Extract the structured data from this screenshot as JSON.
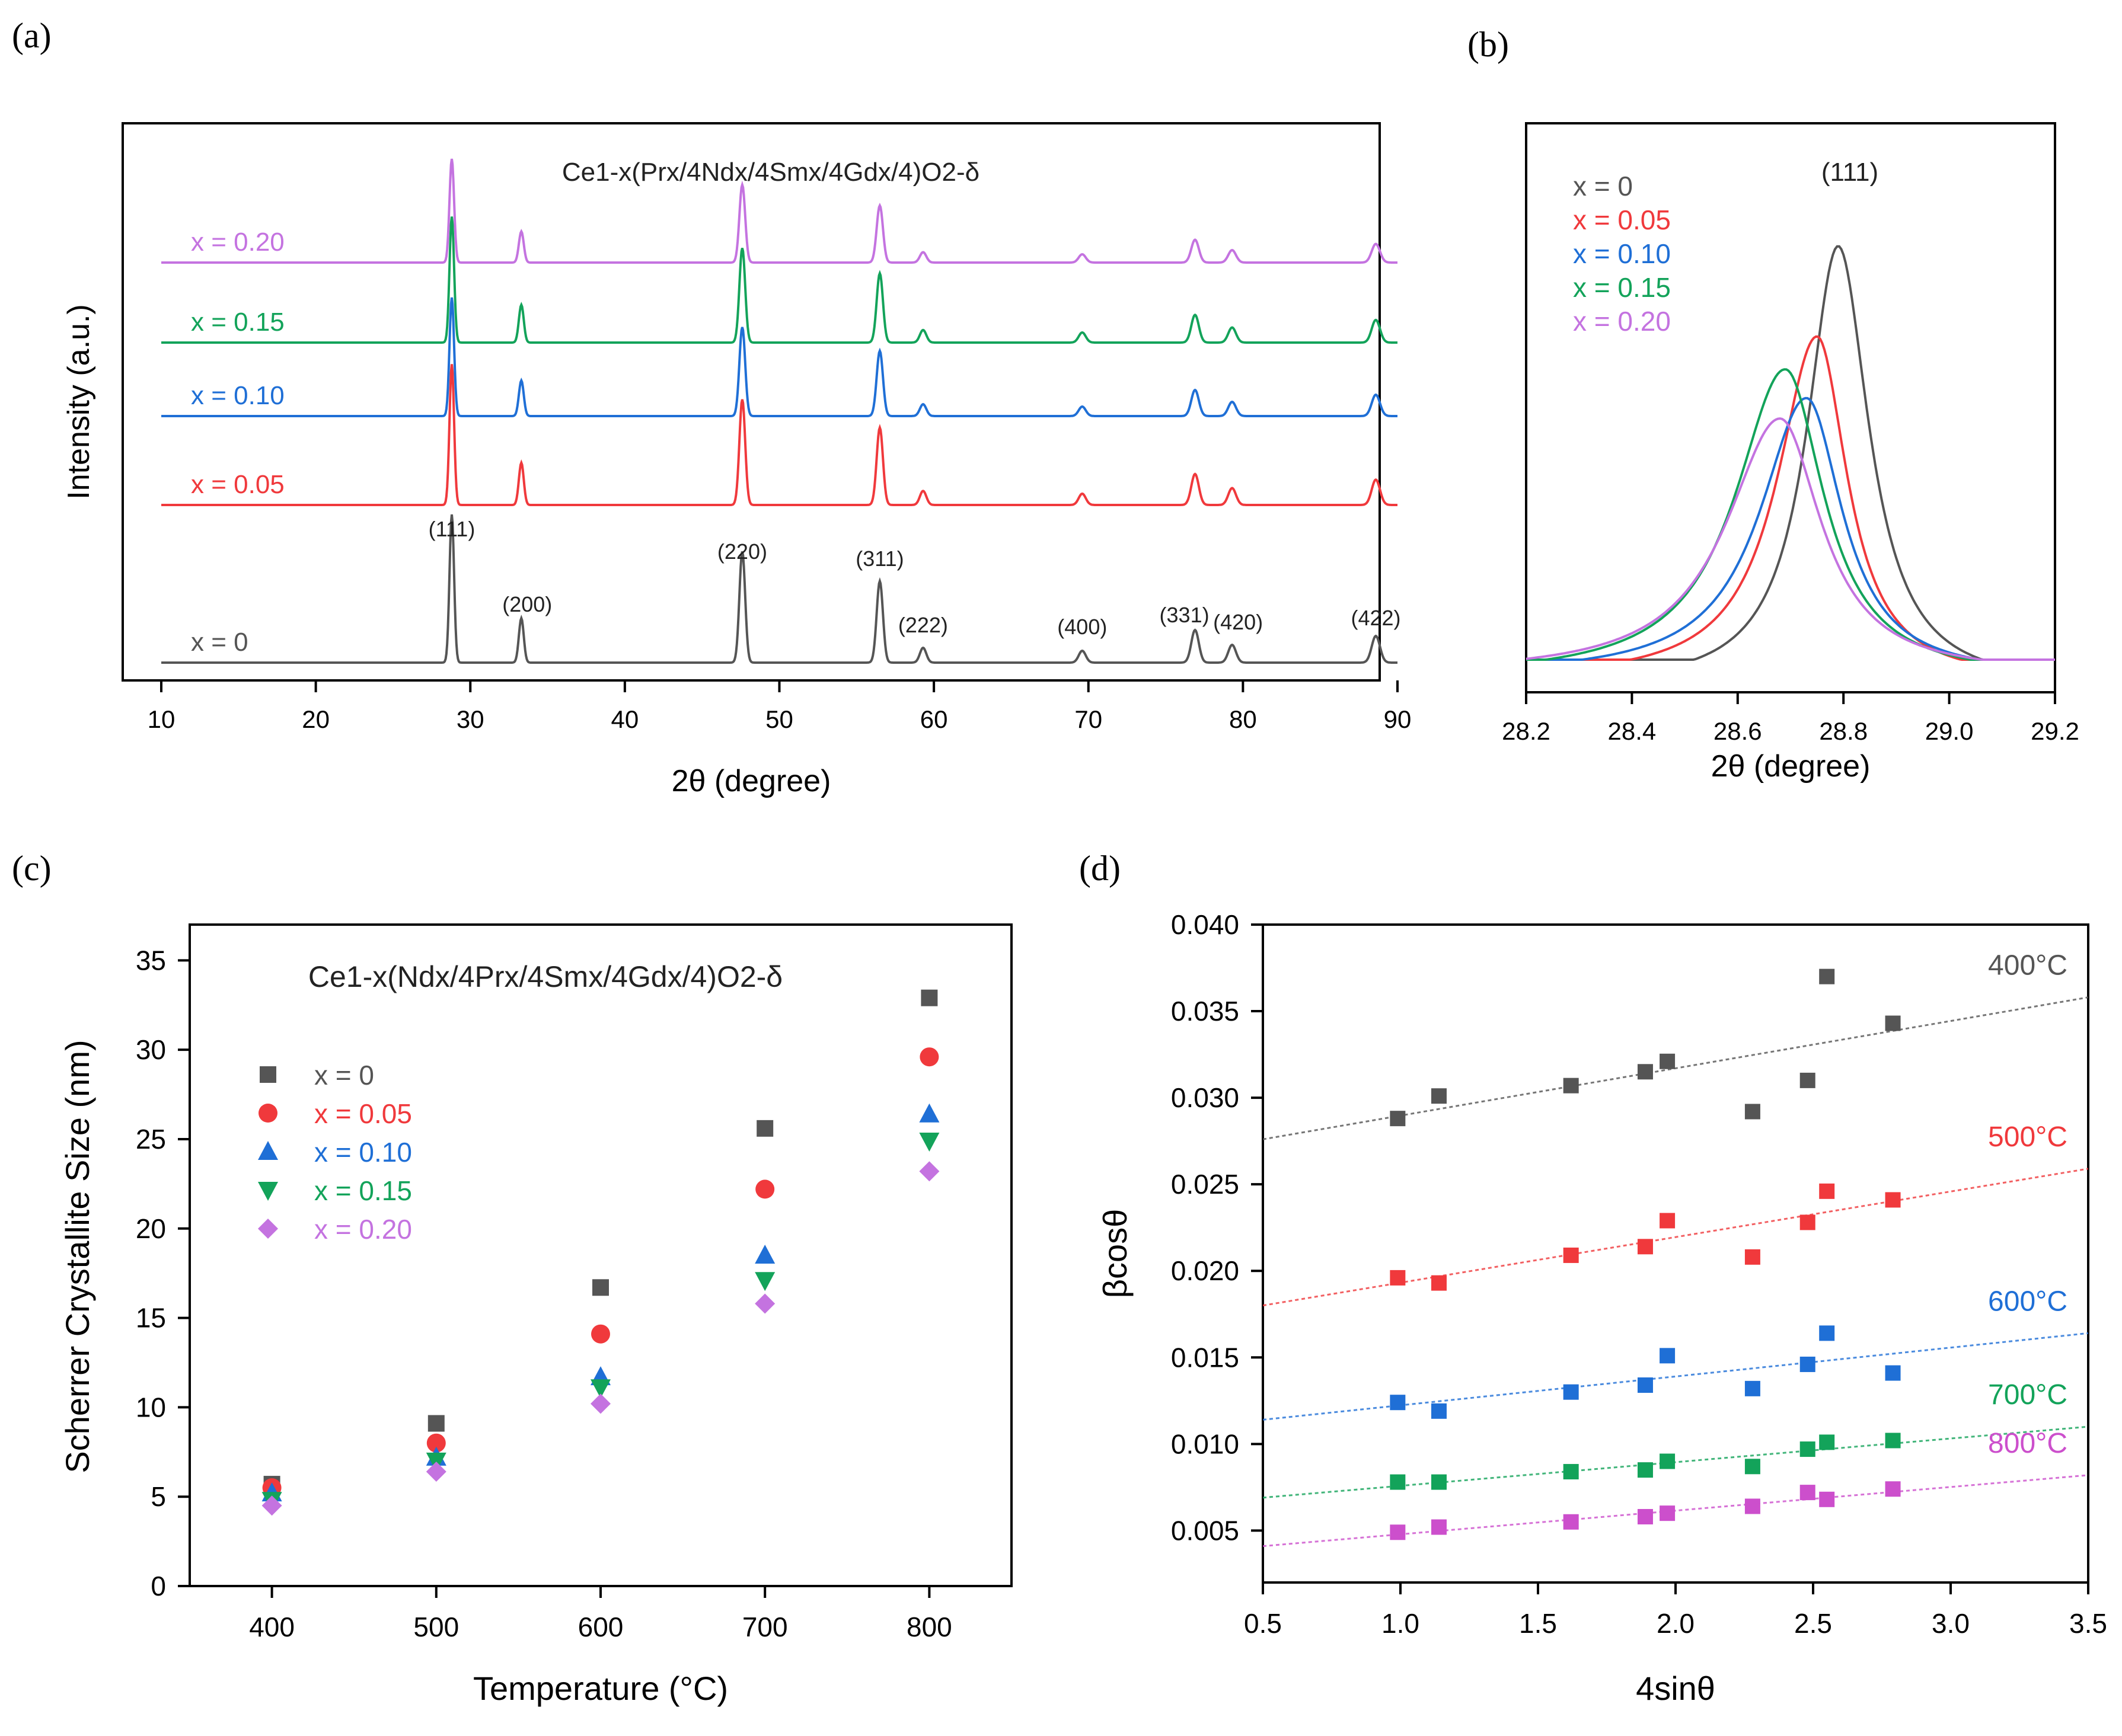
{
  "panels": {
    "a": {
      "label": "(a)"
    },
    "b": {
      "label": "(b)"
    },
    "c": {
      "label": "(c)"
    },
    "d": {
      "label": "(d)"
    }
  },
  "colors": {
    "x0": "#555555",
    "x005": "#f0393c",
    "x010": "#1f6fd6",
    "x015": "#13a35a",
    "x020": "#c473e0",
    "c800": "#cc4fcc"
  },
  "chart_data": [
    {
      "id": "a",
      "type": "line",
      "title": "Ce1-x(Prx/4Ndx/4Smx/4Gdx/4)O2-δ",
      "xlabel": "2θ (degree)",
      "ylabel": "Intensity (a.u.)",
      "xlim": [
        10,
        90
      ],
      "xticks": [
        10,
        20,
        30,
        40,
        50,
        60,
        70,
        80,
        90
      ],
      "peaks": [
        {
          "pos": 28.8,
          "hkl": "(111)",
          "h": 1.0
        },
        {
          "pos": 33.3,
          "hkl": "(200)",
          "h": 0.3
        },
        {
          "pos": 47.6,
          "hkl": "(220)",
          "h": 0.75
        },
        {
          "pos": 56.5,
          "hkl": "(311)",
          "h": 0.55
        },
        {
          "pos": 59.3,
          "hkl": "(222)",
          "h": 0.1
        },
        {
          "pos": 69.6,
          "hkl": "(400)",
          "h": 0.08
        },
        {
          "pos": 76.9,
          "hkl": "(331)",
          "h": 0.22
        },
        {
          "pos": 79.3,
          "hkl": "(420)",
          "h": 0.12
        },
        {
          "pos": 88.6,
          "hkl": "(422)",
          "h": 0.18
        }
      ],
      "series": [
        {
          "name": "x = 0",
          "offset": 0,
          "scale": 1.0
        },
        {
          "name": "x = 0.05",
          "offset": 1,
          "scale": 0.95
        },
        {
          "name": "x = 0.10",
          "offset": 2,
          "scale": 0.8
        },
        {
          "name": "x = 0.15",
          "offset": 3,
          "scale": 0.85
        },
        {
          "name": "x = 0.20",
          "offset": 4,
          "scale": 0.7
        }
      ]
    },
    {
      "id": "b",
      "type": "line",
      "title": "(111)",
      "xlabel": "2θ (degree)",
      "xlim": [
        28.2,
        29.2
      ],
      "xticks": [
        "28.2",
        "28.4",
        "28.6",
        "28.8",
        "29.0",
        "29.2"
      ],
      "series": [
        {
          "name": "x = 0",
          "center": 28.79,
          "height": 1.0,
          "width": 0.095
        },
        {
          "name": "x = 0.05",
          "center": 28.75,
          "height": 0.78,
          "width": 0.11
        },
        {
          "name": "x = 0.10",
          "center": 28.73,
          "height": 0.63,
          "width": 0.13
        },
        {
          "name": "x = 0.15",
          "center": 28.69,
          "height": 0.7,
          "width": 0.14
        },
        {
          "name": "x = 0.20",
          "center": 28.68,
          "height": 0.58,
          "width": 0.15
        }
      ]
    },
    {
      "id": "c",
      "type": "scatter",
      "title": "Ce1-x(Ndx/4Prx/4Smx/4Gdx/4)O2-δ",
      "xlabel": "Temperature (°C)",
      "ylabel": "Scherrer Crystallite Size (nm)",
      "xlim": [
        350,
        850
      ],
      "ylim": [
        0,
        37
      ],
      "xticks": [
        400,
        500,
        600,
        700,
        800
      ],
      "yticks": [
        0,
        5,
        10,
        15,
        20,
        25,
        30,
        35
      ],
      "x": [
        400,
        500,
        600,
        700,
        800
      ],
      "series": [
        {
          "name": "x = 0",
          "marker": "square",
          "values": [
            5.7,
            9.1,
            16.7,
            25.6,
            32.9
          ]
        },
        {
          "name": "x = 0.05",
          "marker": "circle",
          "values": [
            5.5,
            8.0,
            14.1,
            22.2,
            29.6
          ]
        },
        {
          "name": "x = 0.10",
          "marker": "triangle-up",
          "values": [
            5.2,
            7.2,
            11.7,
            18.5,
            26.4
          ]
        },
        {
          "name": "x = 0.15",
          "marker": "triangle-down",
          "values": [
            4.8,
            7.0,
            11.1,
            17.1,
            24.9
          ]
        },
        {
          "name": "x = 0.20",
          "marker": "diamond",
          "values": [
            4.5,
            6.4,
            10.2,
            15.8,
            23.2
          ]
        }
      ]
    },
    {
      "id": "d",
      "type": "scatter",
      "xlabel": "4sinθ",
      "ylabel": "βcosθ",
      "xlim": [
        0.5,
        3.5
      ],
      "ylim": [
        0.002,
        0.04
      ],
      "xticks": [
        "0.5",
        "1.0",
        "1.5",
        "2.0",
        "2.5",
        "3.0",
        "3.5"
      ],
      "yticks": [
        "0.005",
        "0.010",
        "0.015",
        "0.020",
        "0.025",
        "0.030",
        "0.035",
        "0.040"
      ],
      "x": [
        0.99,
        1.14,
        1.62,
        1.89,
        1.97,
        2.28,
        2.48,
        2.55,
        2.79
      ],
      "series": [
        {
          "name": "400°C",
          "values": [
            0.0288,
            0.0301,
            0.0307,
            0.0315,
            0.0321,
            0.0292,
            0.031,
            0.037,
            0.0343
          ],
          "fit": [
            0.0276,
            0.0358
          ]
        },
        {
          "name": "500°C",
          "values": [
            0.0196,
            0.0193,
            0.0209,
            0.0214,
            0.0229,
            0.0208,
            0.0228,
            0.0246,
            0.0241
          ],
          "fit": [
            0.018,
            0.0259
          ]
        },
        {
          "name": "600°C",
          "values": [
            0.0124,
            0.0119,
            0.013,
            0.0134,
            0.0151,
            0.0132,
            0.0146,
            0.0164,
            0.0141
          ],
          "fit": [
            0.0114,
            0.0164
          ]
        },
        {
          "name": "700°C",
          "values": [
            0.0078,
            0.0078,
            0.0084,
            0.0085,
            0.009,
            0.0087,
            0.0097,
            0.0101,
            0.0102
          ],
          "fit": [
            0.0069,
            0.011
          ]
        },
        {
          "name": "800°C",
          "values": [
            0.0049,
            0.0052,
            0.0055,
            0.0058,
            0.006,
            0.0064,
            0.0072,
            0.0068,
            0.0074
          ],
          "fit": [
            0.0041,
            0.0082
          ]
        }
      ]
    }
  ]
}
